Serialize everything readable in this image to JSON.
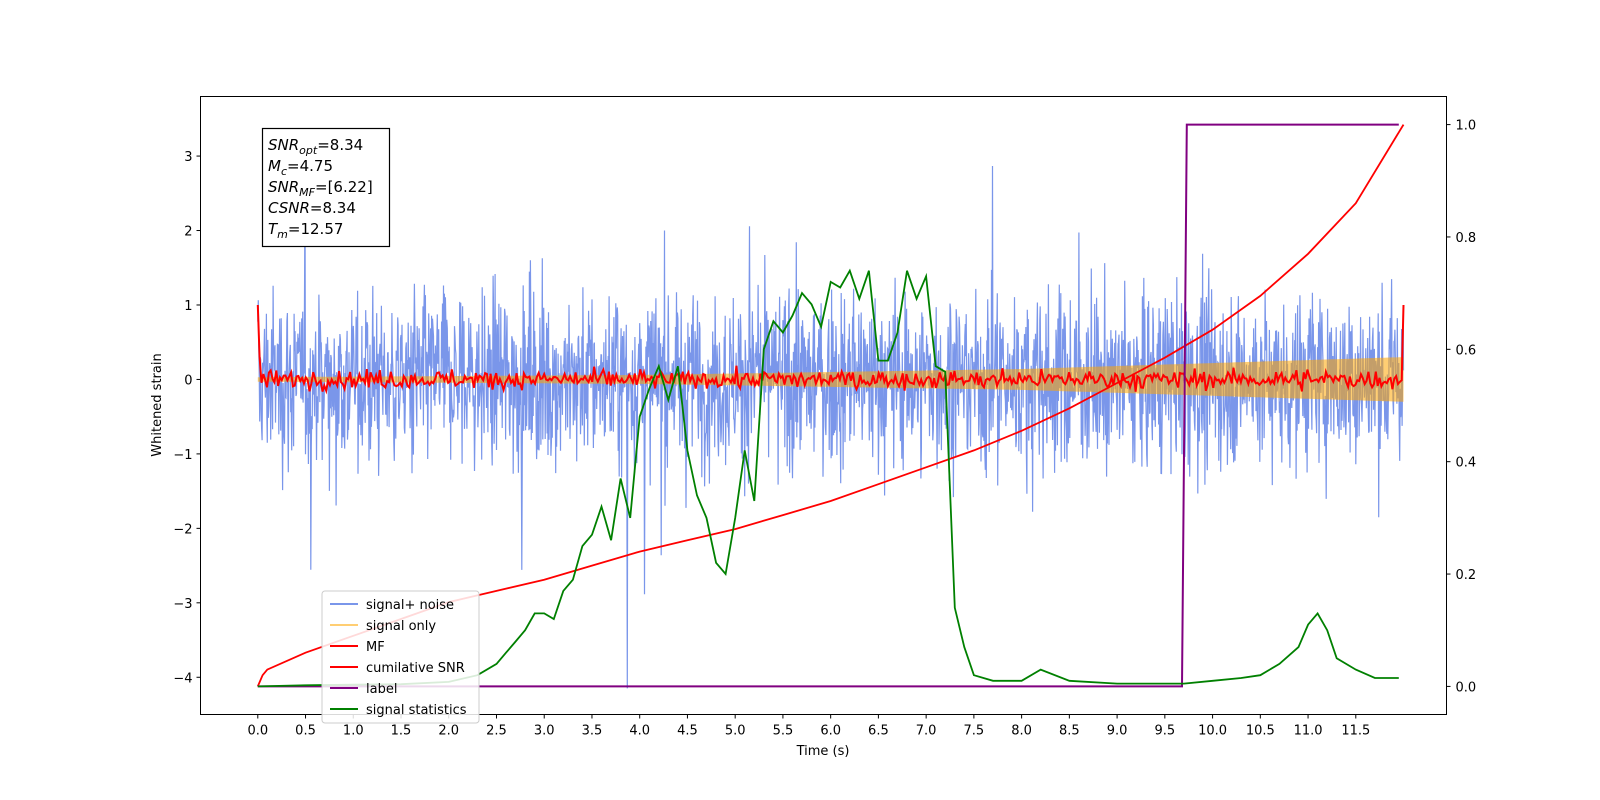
{
  "chart_data": {
    "type": "line",
    "xlabel": "Time (s)",
    "ylabel": "Whitened strain",
    "xlim": [
      -0.6,
      12.45
    ],
    "ylim_left": [
      -4.5,
      3.8
    ],
    "ylim_right": [
      -0.05,
      1.05
    ],
    "x_ticks": [
      "0.0",
      "0.5",
      "1.0",
      "1.5",
      "2.0",
      "2.5",
      "3.0",
      "3.5",
      "4.0",
      "4.5",
      "5.0",
      "5.5",
      "6.0",
      "6.5",
      "7.0",
      "7.5",
      "8.0",
      "8.5",
      "9.0",
      "9.5",
      "10.0",
      "10.5",
      "11.0",
      "11.5"
    ],
    "y_ticks_left": [
      3,
      2,
      1,
      0,
      -1,
      -2,
      -3,
      -4
    ],
    "y_tick_labels_left": [
      "3",
      "2",
      "1",
      "0",
      "−1",
      "−2",
      "−3",
      "−4"
    ],
    "y_ticks_right": [
      1.0,
      0.8,
      0.6,
      0.4,
      0.2,
      0.0
    ],
    "y_tick_labels_right": [
      "1.0",
      "0.8",
      "0.6",
      "0.4",
      "0.2",
      "0.0"
    ],
    "grid": false,
    "legend_position": "lower-left",
    "annotation": {
      "lines": [
        {
          "base": "SNR",
          "sub": "opt",
          "value": "=8.34"
        },
        {
          "base": "M",
          "sub": "c",
          "value": "=4.75"
        },
        {
          "base": "SNR",
          "sub": "MF",
          "value": "=[6.22]"
        },
        {
          "base": "CSNR",
          "sub": "",
          "value": "=8.34"
        },
        {
          "base": "T",
          "sub": "m",
          "value": "=12.57"
        }
      ]
    },
    "series": [
      {
        "name": "signal+ noise",
        "color": "#4169e1",
        "axis": "left",
        "description": "noisy whitened strain, amplitude about +/-1.5 with spikes to about +/-3.5, x from 0 to 12"
      },
      {
        "name": "signal only",
        "color": "#ffa500",
        "axis": "left",
        "envelope": [
          [
            0,
            0.03
          ],
          [
            4,
            0.06
          ],
          [
            8,
            0.14
          ],
          [
            12,
            0.3
          ]
        ]
      },
      {
        "name": "MF",
        "color": "#ff0000",
        "axis": "left",
        "description": "matched filter output oscillating about 0 with amplitude about 0.2, start and end value 1.0"
      },
      {
        "name": "cumilative SNR",
        "color": "#ff0000",
        "axis": "right",
        "x": [
          0,
          0.05,
          0.1,
          0.5,
          1,
          1.5,
          2,
          2.5,
          3,
          3.5,
          4,
          4.5,
          5,
          5.5,
          6,
          6.5,
          7,
          7.5,
          8,
          8.5,
          9,
          9.5,
          10,
          10.5,
          11,
          11.5,
          12
        ],
        "values": [
          0.0,
          0.02,
          0.03,
          0.06,
          0.09,
          0.12,
          0.15,
          0.17,
          0.19,
          0.215,
          0.24,
          0.26,
          0.28,
          0.305,
          0.33,
          0.36,
          0.39,
          0.42,
          0.455,
          0.495,
          0.54,
          0.585,
          0.635,
          0.695,
          0.77,
          0.86,
          1.0
        ]
      },
      {
        "name": "label",
        "color": "#800080",
        "axis": "right",
        "x": [
          0,
          9.68,
          9.73,
          11.0,
          11.95
        ],
        "values": [
          0,
          0,
          1,
          1,
          1
        ]
      },
      {
        "name": "signal statistics",
        "color": "#008000",
        "axis": "right",
        "x": [
          0,
          0.5,
          1,
          1.5,
          2,
          2.3,
          2.5,
          2.6,
          2.7,
          2.8,
          2.9,
          3.0,
          3.1,
          3.2,
          3.3,
          3.4,
          3.5,
          3.6,
          3.7,
          3.8,
          3.9,
          4.0,
          4.1,
          4.2,
          4.3,
          4.4,
          4.5,
          4.6,
          4.7,
          4.8,
          4.9,
          5.0,
          5.1,
          5.2,
          5.3,
          5.4,
          5.5,
          5.6,
          5.7,
          5.8,
          5.9,
          6.0,
          6.1,
          6.2,
          6.3,
          6.4,
          6.5,
          6.6,
          6.7,
          6.8,
          6.9,
          7.0,
          7.1,
          7.2,
          7.3,
          7.4,
          7.5,
          7.7,
          8.0,
          8.2,
          8.5,
          9.0,
          9.5,
          9.7,
          10.0,
          10.3,
          10.5,
          10.7,
          10.9,
          11.0,
          11.1,
          11.2,
          11.3,
          11.5,
          11.7,
          11.95
        ],
        "values": [
          0.0,
          0.002,
          0.003,
          0.004,
          0.008,
          0.02,
          0.04,
          0.06,
          0.08,
          0.1,
          0.13,
          0.13,
          0.12,
          0.17,
          0.19,
          0.25,
          0.27,
          0.32,
          0.26,
          0.37,
          0.3,
          0.48,
          0.53,
          0.57,
          0.51,
          0.57,
          0.42,
          0.34,
          0.3,
          0.22,
          0.2,
          0.3,
          0.42,
          0.33,
          0.6,
          0.65,
          0.63,
          0.66,
          0.7,
          0.68,
          0.64,
          0.72,
          0.71,
          0.74,
          0.69,
          0.74,
          0.58,
          0.58,
          0.63,
          0.74,
          0.69,
          0.73,
          0.57,
          0.56,
          0.14,
          0.07,
          0.02,
          0.01,
          0.01,
          0.03,
          0.01,
          0.005,
          0.005,
          0.005,
          0.01,
          0.015,
          0.02,
          0.04,
          0.07,
          0.11,
          0.13,
          0.1,
          0.05,
          0.03,
          0.015,
          0.015
        ]
      }
    ]
  }
}
